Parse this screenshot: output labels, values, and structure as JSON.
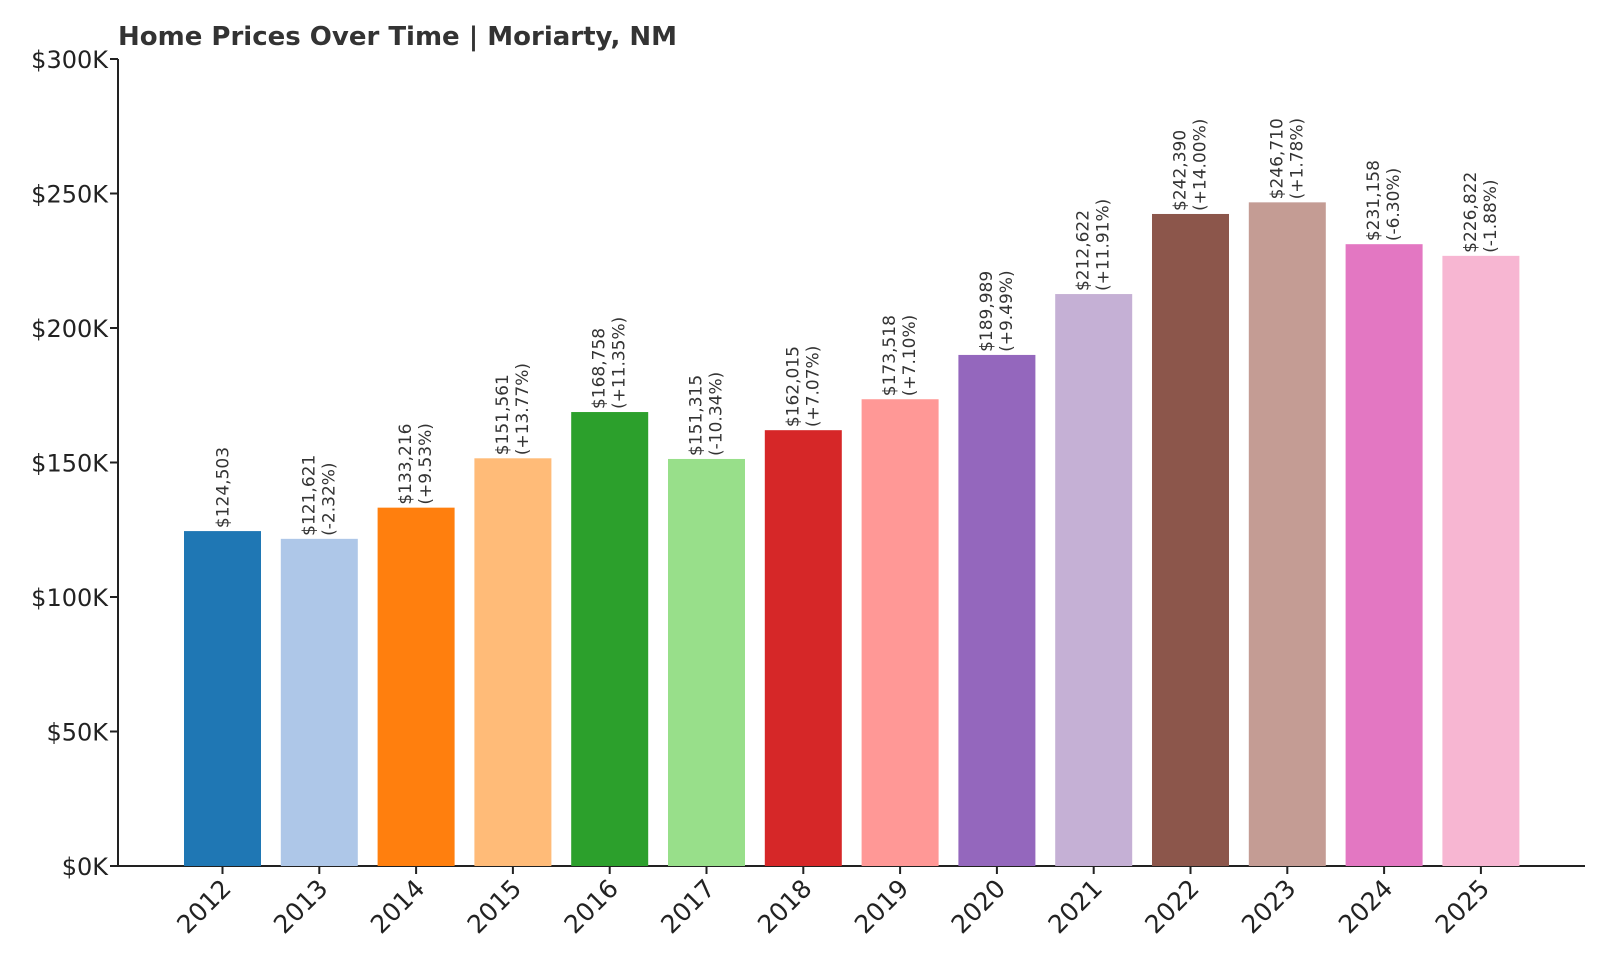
{
  "chart_data": {
    "type": "bar",
    "title": "Home Prices Over Time | Moriarty, NM",
    "xlabel": "",
    "ylabel": "",
    "ylim": [
      0,
      300000
    ],
    "yticks": [
      0,
      50000,
      100000,
      150000,
      200000,
      250000,
      300000
    ],
    "ytick_labels": [
      "$0K",
      "$50K",
      "$100K",
      "$150K",
      "$200K",
      "$250K",
      "$300K"
    ],
    "grid": false,
    "categories": [
      "2012",
      "2013",
      "2014",
      "2015",
      "2016",
      "2017",
      "2018",
      "2019",
      "2020",
      "2021",
      "2022",
      "2023",
      "2024",
      "2025"
    ],
    "values": [
      124503,
      121621,
      133216,
      151561,
      168758,
      151315,
      162015,
      173518,
      189989,
      212622,
      242390,
      246710,
      231158,
      226822
    ],
    "value_labels": [
      "$124,503",
      "$121,621",
      "$133,216",
      "$151,561",
      "$168,758",
      "$151,315",
      "$162,015",
      "$173,518",
      "$189,989",
      "$212,622",
      "$242,390",
      "$246,710",
      "$231,158",
      "$226,822"
    ],
    "change_labels": [
      "",
      "(-2.32%)",
      "(+9.53%)",
      "(+13.77%)",
      "(+11.35%)",
      "(-10.34%)",
      "(+7.07%)",
      "(+7.10%)",
      "(+9.49%)",
      "(+11.91%)",
      "(+14.00%)",
      "(+1.78%)",
      "(-6.30%)",
      "(-1.88%)"
    ],
    "colors": [
      "#1f77b4",
      "#aec7e8",
      "#ff7f0e",
      "#ffbb78",
      "#2ca02c",
      "#98df8a",
      "#d62728",
      "#ff9896",
      "#9467bd",
      "#c5b0d5",
      "#8c564b",
      "#c49c94",
      "#e377c2",
      "#f7b6d2"
    ]
  }
}
